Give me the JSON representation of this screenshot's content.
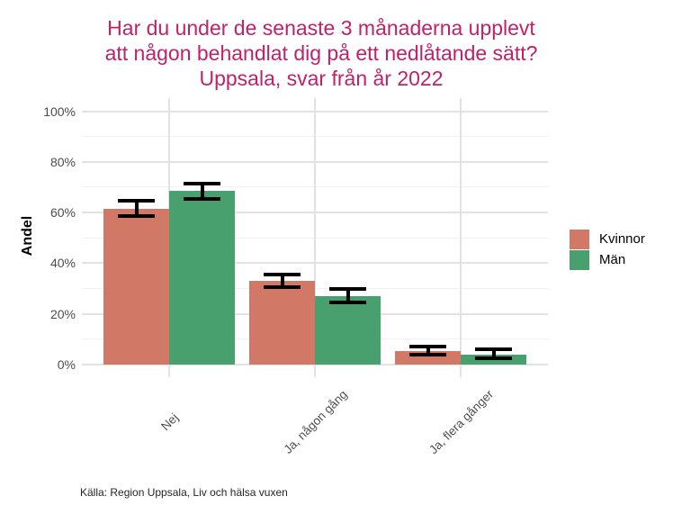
{
  "chart_data": {
    "type": "bar",
    "title": "Har du under de senaste 3 månaderna upplevt att någon behandlat dig på ett nedlåtande sätt? Uppsala, svar från år 2022",
    "title_lines": [
      "Har du under de senaste 3 månaderna upplevt",
      "att någon behandlat dig på ett nedlåtande sätt?",
      "Uppsala, svar från år 2022"
    ],
    "title_color": "#C02169",
    "ylabel": "Andel",
    "xlabel": "",
    "categories": [
      "Nej",
      "Ja, någon gång",
      "Ja, flera gånger"
    ],
    "series": [
      {
        "name": "Kvinnor",
        "color": "#D27867",
        "values": [
          61.5,
          33,
          5.5
        ],
        "ci_low": [
          58.5,
          30.5,
          4
        ],
        "ci_high": [
          64.5,
          35.5,
          7
        ]
      },
      {
        "name": "Män",
        "color": "#49A06F",
        "values": [
          68.5,
          27,
          4
        ],
        "ci_low": [
          65.5,
          24.5,
          2.5
        ],
        "ci_high": [
          71.5,
          30,
          6
        ]
      }
    ],
    "yticks": [
      "0%",
      "20%",
      "40%",
      "60%",
      "80%",
      "100%"
    ],
    "ytick_values": [
      0,
      20,
      40,
      60,
      80,
      100
    ],
    "ylim": [
      0,
      100
    ],
    "error_bars": true,
    "error_bar_color": "#000000",
    "grid": true,
    "legend_position": "right",
    "caption": "Källa: Region Uppsala, Liv och hälsa vuxen"
  }
}
